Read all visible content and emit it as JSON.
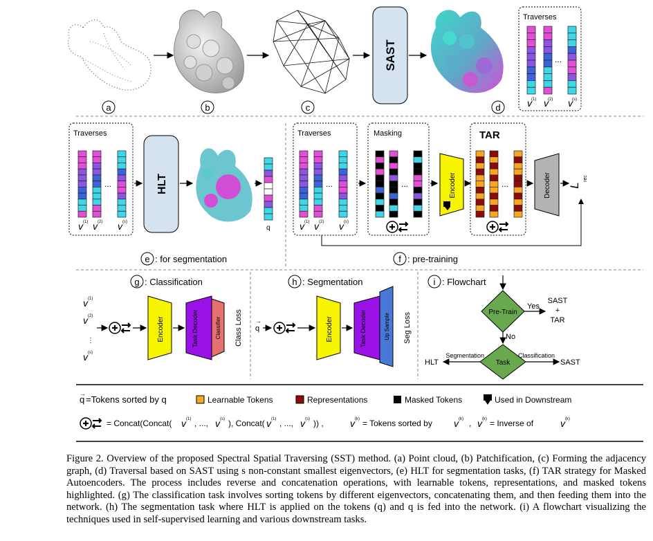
{
  "panel_a": {
    "letter": "a"
  },
  "panel_b": {
    "letter": "b"
  },
  "panel_c": {
    "letter": "c"
  },
  "panel_d": {
    "letter": "d",
    "title": "Traverses",
    "v_labels": [
      "v",
      "v",
      "v"
    ],
    "v_sups": [
      "(1)",
      "(2)",
      "(s)"
    ]
  },
  "sast_label": "SAST",
  "panel_e": {
    "title": "Traverses",
    "hlt_label": "HLT",
    "q_label": "q",
    "letter": "e",
    "caption": ": for segmentation",
    "v_sups": [
      "(1)",
      "(2)",
      "(s)"
    ]
  },
  "panel_f": {
    "traverses_title": "Traverses",
    "masking_title": "Masking",
    "encoder_label": "Encoder",
    "tar_title": "TAR",
    "decoder_label": "Decoder",
    "loss_label": "L",
    "loss_sub": "rec",
    "letter": "f",
    "caption": ": pre-training",
    "v_sups": [
      "(1)",
      "(2)",
      "(s)"
    ]
  },
  "panel_g": {
    "letter": "g",
    "title": ": Classification",
    "encoder_label": "Encoder",
    "task_decoder_label": "Task Decoder",
    "classifier_label": "Classifier",
    "loss_label": "Class Loss",
    "v_sups": [
      "(1)",
      "(2)",
      "(s)"
    ]
  },
  "panel_h": {
    "letter": "h",
    "title": ": Segmentation",
    "q_label": "q",
    "encoder_label": "Encoder",
    "task_decoder_label": "Task Decoder",
    "upsample_label": "Up Sample",
    "loss_label": "Seg Loss"
  },
  "panel_i": {
    "letter": "i",
    "title": ": Flowchart",
    "pretrain_label": "Pre-Train",
    "yes_label": "Yes",
    "no_label": "No",
    "sast_tar_label": "SAST\n+\nTAR",
    "task_label": "Task",
    "segmentation_label": "Segmentation",
    "classification_label": "Classification",
    "hlt_label": "HLT",
    "sast_label": "SAST"
  },
  "legend": {
    "q_text": "=Tokens sorted by q",
    "learnable": "Learnable Tokens",
    "representations": "Representations",
    "masked": "Masked Tokens",
    "downstream": "Used in Downstream",
    "concat_text": "= Concat(Concat(",
    "sorted_text": "= Tokens sorted by",
    "inverse_text": "= Inverse of",
    "colors": {
      "learnable": "#f5a623",
      "representations": "#8b0a0a",
      "masked": "#000000"
    }
  },
  "colors": {
    "magenta": "#e14fd6",
    "cyan": "#3fd6e8",
    "blue": "#3d63d8",
    "purple": "#8a55e0",
    "encoder": "#f7f500",
    "task_decoder": "#9a12e8",
    "classifier": "#e57070",
    "upsample": "#4a78d6",
    "decoder": "#b3b3b3",
    "box_blue": "#d5e3f1",
    "diamond": "#6aa84f"
  },
  "caption": {
    "figure_label": "Figure 2.",
    "text": "Overview of the proposed Spectral Spatial Traversing (SST) method. (a) Point cloud, (b) Patchification, (c) Forming the adjacency graph, (d) Traversal based on SAST using s non-constant smallest eigenvectors, (e) HLT for segmentation tasks, (f) TAR strategy for Masked Autoencoders. The process includes reverse and concatenation operations, with learnable tokens, representations, and masked tokens highlighted. (g) The classification task involves sorting tokens by different eigenvectors, concatenating them, and then feeding them into the network. (h) The segmentation task where HLT is applied on the tokens (q) and q is fed into the network. (i) A flowchart visualizing the techniques used in self-supervised learning and various downstream tasks."
  }
}
